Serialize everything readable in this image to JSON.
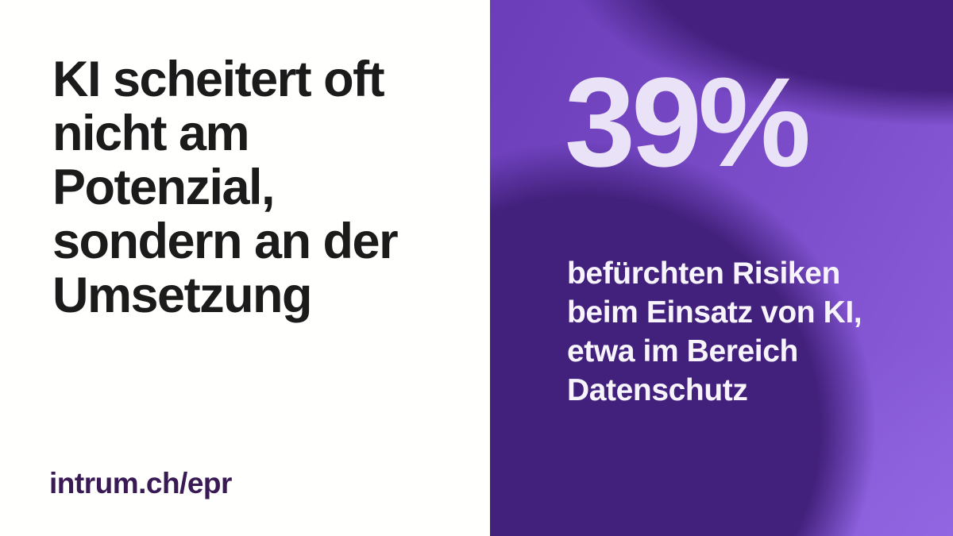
{
  "infographic": {
    "headline_lines": [
      "KI scheitert oft",
      "nicht am",
      "Potenzial,",
      "sondern an der",
      "Umsetzung"
    ],
    "link": "intrum.ch/epr",
    "stat": {
      "value": "39%",
      "description_lines": [
        "befürchten Risiken",
        "beim Einsatz von KI,",
        "etwa im Bereich",
        "Datenschutz"
      ]
    },
    "colors": {
      "left_background": "#ffffff",
      "headline_text": "#1b1b1b",
      "link_text": "#3a1a54",
      "panel_base_purple": "#7d4ecb",
      "panel_dark_blob": "#42217c",
      "panel_light_corner": "#8d5fdc",
      "stat_value_text": "#eae2f7",
      "stat_description_text": "#f7f4fc"
    }
  }
}
